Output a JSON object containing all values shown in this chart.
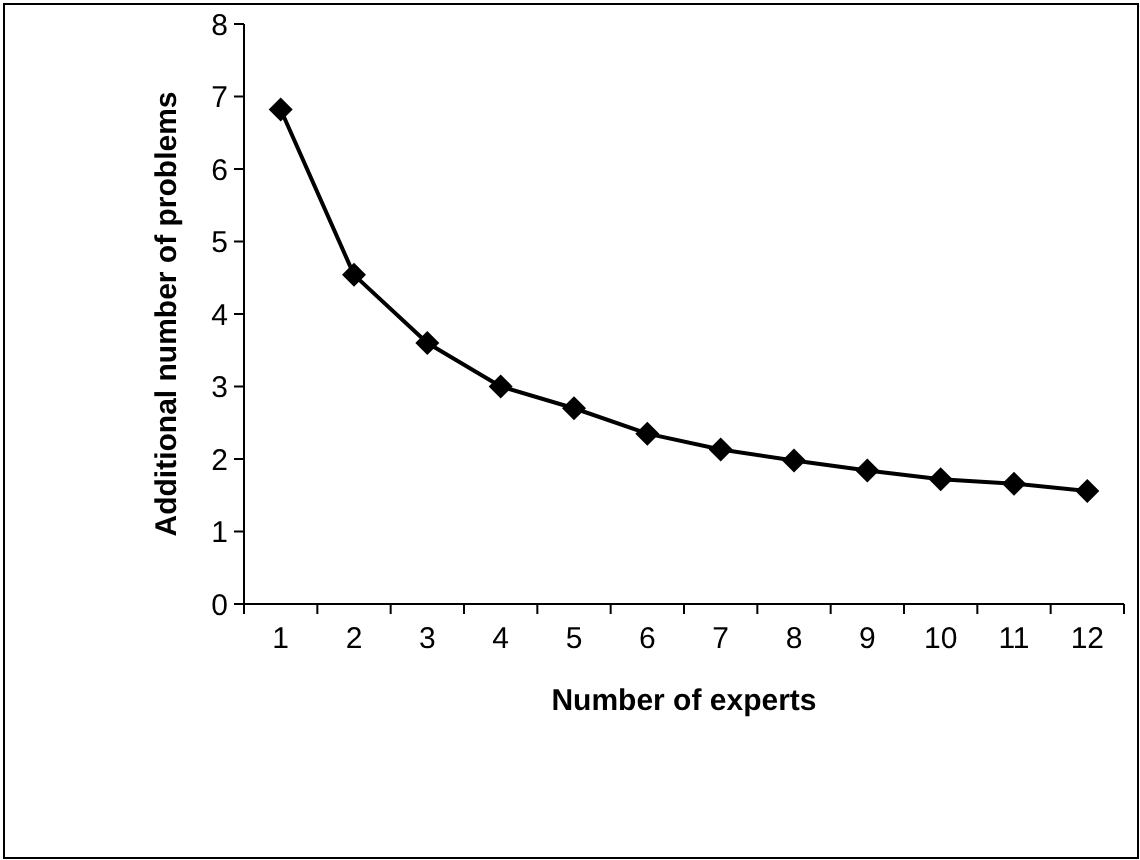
{
  "chart_data": {
    "type": "line",
    "xlabel": "Number of experts",
    "ylabel": "Additional number of problems",
    "categories": [
      "1",
      "2",
      "3",
      "4",
      "5",
      "6",
      "7",
      "8",
      "9",
      "10",
      "11",
      "12"
    ],
    "series": [
      {
        "color": "#000000",
        "values": [
          6.82,
          4.54,
          3.6,
          3.0,
          2.7,
          2.35,
          2.13,
          1.98,
          1.84,
          1.72,
          1.66,
          1.56
        ]
      }
    ],
    "ylim": [
      0,
      8
    ],
    "yticks": [
      0,
      1,
      2,
      3,
      4,
      5,
      6,
      7,
      8
    ],
    "grid": false,
    "marker": "diamond",
    "line_style": "solid"
  }
}
